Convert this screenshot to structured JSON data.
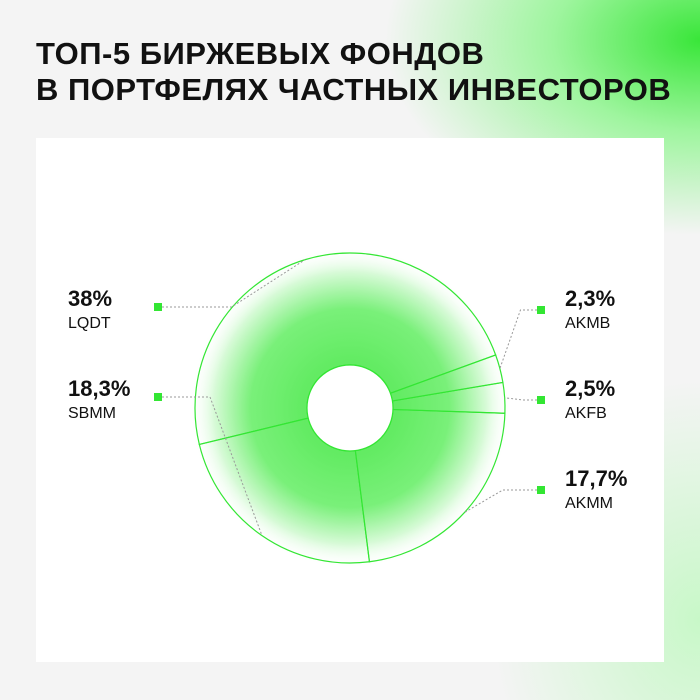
{
  "title_lines": [
    "ТОП-5 БИРЖЕВЫХ ФОНДОВ",
    "В ПОРТФЕЛЯХ ЧАСТНЫХ ИНВЕСТОРОВ"
  ],
  "chart_data": {
    "type": "pie",
    "donut": true,
    "color": "#33e633",
    "categories": [
      "LQDT",
      "SBMM",
      "AKMM",
      "AKFB",
      "AKMB"
    ],
    "values": [
      38,
      18.3,
      17.7,
      2.5,
      2.3
    ],
    "value_labels": [
      "38%",
      "18,3%",
      "17,7%",
      "2,5%",
      "2,3%"
    ]
  }
}
